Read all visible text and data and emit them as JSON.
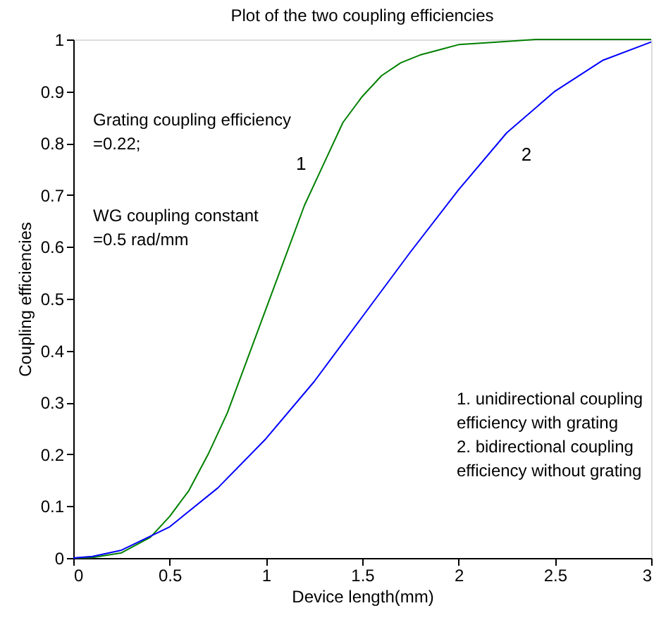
{
  "chart_data": {
    "type": "line",
    "title": "Plot of the two coupling efficiencies",
    "xlabel": "Device length(mm)",
    "ylabel": "Coupling efficiencies",
    "series": [
      {
        "name": "1",
        "color": "#008000",
        "x": [
          0,
          0.1,
          0.25,
          0.4,
          0.5,
          0.6,
          0.7,
          0.8,
          0.9,
          1.0,
          1.1,
          1.2,
          1.3,
          1.4,
          1.5,
          1.6,
          1.7,
          1.8,
          1.9,
          2.0,
          2.2,
          2.4,
          3.0
        ],
        "values": [
          0,
          0.001,
          0.01,
          0.04,
          0.08,
          0.13,
          0.2,
          0.28,
          0.38,
          0.48,
          0.58,
          0.68,
          0.76,
          0.84,
          0.89,
          0.93,
          0.955,
          0.97,
          0.98,
          0.99,
          0.995,
          1.0,
          1.0
        ]
      },
      {
        "name": "2",
        "color": "#0000ff",
        "x": [
          0,
          0.1,
          0.25,
          0.5,
          0.75,
          1.0,
          1.25,
          1.5,
          1.75,
          2.0,
          2.25,
          2.5,
          2.75,
          3.0
        ],
        "values": [
          0,
          0.003,
          0.015,
          0.06,
          0.135,
          0.23,
          0.34,
          0.465,
          0.59,
          0.71,
          0.82,
          0.9,
          0.96,
          0.995
        ]
      }
    ],
    "xlim": [
      0,
      3
    ],
    "ylim": [
      0,
      1
    ],
    "xticks": [
      0,
      0.5,
      1,
      1.5,
      2,
      2.5,
      3
    ],
    "yticks": [
      0,
      0.1,
      0.2,
      0.3,
      0.4,
      0.5,
      0.6,
      0.7,
      0.8,
      0.9,
      1
    ],
    "grid": false,
    "legend": false,
    "line_style": "solid",
    "marker": "none",
    "annotations": [
      "Grating coupling efficiency\n=0.22;",
      "WG coupling constant\n=0.5 rad/mm",
      "1. unidirectional coupling\n    efficiency with grating\n2. bidirectional coupling\n    efficiency without grating"
    ]
  }
}
